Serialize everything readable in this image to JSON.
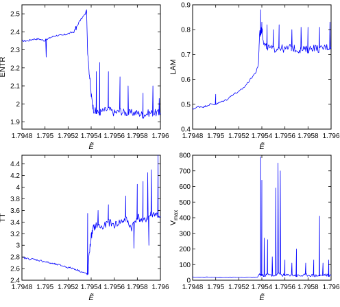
{
  "chart_data": [
    {
      "type": "line",
      "ylabel": "ENTR",
      "xlabel": "Ẽ",
      "xlim": [
        1.7948,
        1.796
      ],
      "ylim": [
        1.86,
        2.55
      ],
      "xticks": [
        "1.7948",
        "1.795",
        "1.7952",
        "1.7954",
        "1.7956",
        "1.7958",
        "1.796"
      ],
      "yticks": [
        "1.9",
        "2",
        "2.1",
        "2.2",
        "2.3",
        "2.4",
        "2.5"
      ],
      "x": [
        1.7948,
        1.79485,
        1.7949,
        1.79495,
        1.795,
        1.79505,
        1.7951,
        1.79515,
        1.7952,
        1.79525,
        1.7953,
        1.79535,
        1.79536,
        1.79537,
        1.79538,
        1.7954,
        1.79542,
        1.79545,
        1.7955,
        1.79555,
        1.7956,
        1.79565,
        1.7957,
        1.79575,
        1.7958,
        1.79585,
        1.7959,
        1.79595,
        1.796
      ],
      "values": [
        2.35,
        2.35,
        2.36,
        2.36,
        2.35,
        2.37,
        2.38,
        2.38,
        2.39,
        2.4,
        2.46,
        2.5,
        2.52,
        2.28,
        2.2,
        2.05,
        1.97,
        1.95,
        1.96,
        1.97,
        1.95,
        1.96,
        1.95,
        1.95,
        1.95,
        1.94,
        1.95,
        1.95,
        1.95
      ],
      "spikes": [
        [
          1.79501,
          2.26
        ],
        [
          1.79527,
          2.41
        ],
        [
          1.795445,
          2.18
        ],
        [
          1.795475,
          2.23
        ],
        [
          1.79555,
          2.18
        ],
        [
          1.79565,
          2.15
        ],
        [
          1.79572,
          2.1
        ],
        [
          1.79585,
          2.06
        ],
        [
          1.795935,
          2.1
        ],
        [
          1.79599,
          2.03
        ]
      ]
    },
    {
      "type": "line",
      "ylabel": "LAM",
      "xlabel": "Ẽ",
      "xlim": [
        1.7948,
        1.796
      ],
      "ylim": [
        0.4,
        0.9
      ],
      "xticks": [
        "1.7948",
        "1.795",
        "1.7952",
        "1.7954",
        "1.7956",
        "1.7958",
        "1.796"
      ],
      "yticks": [
        "0.4",
        "0.5",
        "0.6",
        "0.7",
        "0.8",
        "0.9"
      ],
      "x": [
        1.7948,
        1.79485,
        1.7949,
        1.79495,
        1.795,
        1.79505,
        1.7951,
        1.79515,
        1.7952,
        1.79525,
        1.7953,
        1.79535,
        1.79537,
        1.79538,
        1.7954,
        1.79542,
        1.79545,
        1.7955,
        1.79555,
        1.7956,
        1.79565,
        1.7957,
        1.79575,
        1.7958,
        1.79585,
        1.7959,
        1.79595,
        1.796
      ],
      "values": [
        0.48,
        0.49,
        0.49,
        0.5,
        0.5,
        0.51,
        0.52,
        0.54,
        0.55,
        0.57,
        0.6,
        0.63,
        0.66,
        0.78,
        0.8,
        0.74,
        0.73,
        0.72,
        0.73,
        0.72,
        0.73,
        0.72,
        0.72,
        0.72,
        0.73,
        0.72,
        0.73,
        0.73
      ],
      "spikes": [
        [
          1.795,
          0.54
        ],
        [
          1.79539,
          0.88
        ],
        [
          1.7954,
          0.83
        ],
        [
          1.795445,
          0.82
        ],
        [
          1.7955,
          0.8
        ],
        [
          1.79555,
          0.82
        ],
        [
          1.79566,
          0.8
        ],
        [
          1.79574,
          0.81
        ],
        [
          1.7958,
          0.81
        ],
        [
          1.7959,
          0.81
        ],
        [
          1.79599,
          0.83
        ]
      ]
    },
    {
      "type": "line",
      "ylabel": "TT",
      "xlabel": "Ẽ",
      "xlim": [
        1.7948,
        1.796
      ],
      "ylim": [
        2.4,
        4.55
      ],
      "xticks": [
        "1.7948",
        "1.795",
        "1.7952",
        "1.7954",
        "1.7956",
        "1.7958",
        "1.796"
      ],
      "yticks": [
        "2.4",
        "2.6",
        "2.8",
        "3",
        "3.2",
        "3.4",
        "3.6",
        "3.8",
        "4",
        "4.2",
        "4.4"
      ],
      "x": [
        1.7948,
        1.79485,
        1.7949,
        1.79495,
        1.795,
        1.79505,
        1.7951,
        1.79515,
        1.7952,
        1.79525,
        1.7953,
        1.79535,
        1.79537,
        1.79538,
        1.7954,
        1.79542,
        1.79545,
        1.7955,
        1.79555,
        1.7956,
        1.79565,
        1.7957,
        1.79575,
        1.7958,
        1.79585,
        1.7959,
        1.79595,
        1.796
      ],
      "values": [
        2.79,
        2.77,
        2.76,
        2.74,
        2.72,
        2.69,
        2.67,
        2.65,
        2.62,
        2.6,
        2.56,
        2.52,
        2.5,
        2.8,
        3.15,
        3.3,
        3.35,
        3.3,
        3.4,
        3.35,
        3.4,
        3.45,
        3.3,
        3.5,
        3.4,
        3.5,
        3.55,
        3.5
      ],
      "spikes": [
        [
          1.79537,
          3.55
        ],
        [
          1.79546,
          3.6
        ],
        [
          1.79555,
          3.7
        ],
        [
          1.7957,
          3.85
        ],
        [
          1.7958,
          4.05
        ],
        [
          1.79585,
          4.1
        ],
        [
          1.79589,
          4.25
        ],
        [
          1.79592,
          4.3
        ],
        [
          1.79598,
          4.55
        ],
        [
          1.7959,
          3.0
        ],
        [
          1.79577,
          2.95
        ]
      ]
    },
    {
      "type": "line",
      "ylabel": "V",
      "ylabel_sub": "max",
      "xlabel": "Ẽ",
      "xlim": [
        1.7948,
        1.796
      ],
      "ylim": [
        0,
        800
      ],
      "xticks": [
        "1.7948",
        "1.795",
        "1.7952",
        "1.7954",
        "1.7956",
        "1.7958",
        "1.796"
      ],
      "yticks": [
        "0",
        "100",
        "200",
        "300",
        "400",
        "500",
        "600",
        "700",
        "800"
      ],
      "x": [
        1.7948,
        1.7949,
        1.795,
        1.7951,
        1.7952,
        1.7953,
        1.79536,
        1.79538,
        1.7954,
        1.79545,
        1.7955,
        1.79555,
        1.7956,
        1.79565,
        1.7957,
        1.79575,
        1.7958,
        1.79585,
        1.7959,
        1.79595,
        1.796
      ],
      "values": [
        20,
        19,
        19,
        18,
        18,
        18,
        18,
        40,
        30,
        35,
        30,
        40,
        30,
        35,
        30,
        30,
        35,
        30,
        30,
        35,
        30
      ],
      "spikes": [
        [
          1.79539,
          790
        ],
        [
          1.7954,
          640
        ],
        [
          1.79542,
          270
        ],
        [
          1.79545,
          260
        ],
        [
          1.79549,
          150
        ],
        [
          1.79552,
          590
        ],
        [
          1.79554,
          750
        ],
        [
          1.79556,
          700
        ],
        [
          1.7956,
          130
        ],
        [
          1.79566,
          110
        ],
        [
          1.7957,
          200
        ],
        [
          1.79578,
          110
        ],
        [
          1.79585,
          130
        ],
        [
          1.7959,
          410
        ],
        [
          1.79593,
          110
        ],
        [
          1.79598,
          130
        ]
      ]
    }
  ]
}
